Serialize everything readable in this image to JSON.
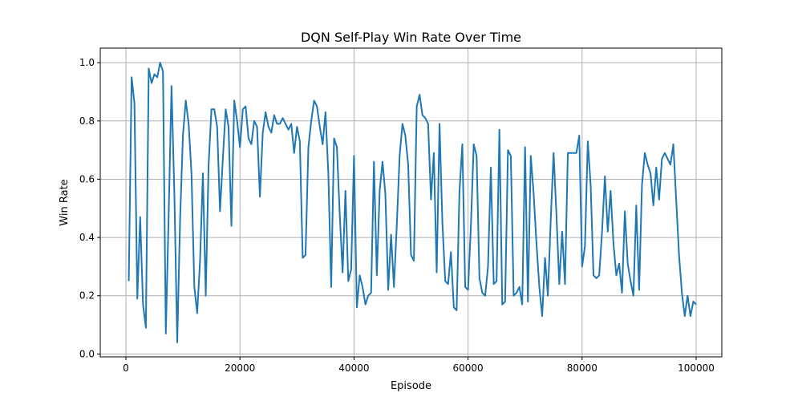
{
  "chart_data": {
    "type": "line",
    "title": "DQN Self-Play Win Rate Over Time",
    "xlabel": "Episode",
    "ylabel": "Win Rate",
    "xlim": [
      -4500,
      104500
    ],
    "ylim": [
      -0.01,
      1.05
    ],
    "xticks": [
      0,
      20000,
      40000,
      60000,
      80000,
      100000
    ],
    "xtick_labels": [
      "0",
      "20000",
      "40000",
      "60000",
      "80000",
      "100000"
    ],
    "yticks": [
      0.0,
      0.2,
      0.4,
      0.6,
      0.8,
      1.0
    ],
    "ytick_labels": [
      "0.0",
      "0.2",
      "0.4",
      "0.6",
      "0.8",
      "1.0"
    ],
    "grid": true,
    "line_color": "#1f77b4",
    "series": [
      {
        "x": [
          500,
          1000,
          1500,
          2000,
          2500,
          3000,
          3500,
          4000,
          4500,
          5000,
          5500,
          6000,
          6500,
          7000,
          7500,
          8000,
          8500,
          9000,
          9500,
          10000,
          10500,
          11000,
          11500,
          12000,
          12500,
          13000,
          13500,
          14000,
          14500,
          15000,
          15500,
          16000,
          16500,
          17000,
          17500,
          18000,
          18500,
          19000,
          19500,
          20000,
          20500,
          21000,
          21500,
          22000,
          22500,
          23000,
          23500,
          24000,
          24500,
          25000,
          25500,
          26000,
          26500,
          27000,
          27500,
          28000,
          28500,
          29000,
          29500,
          30000,
          30500,
          31000,
          31500,
          32000,
          32500,
          33000,
          33500,
          34000,
          34500,
          35000,
          35500,
          36000,
          36500,
          37000,
          37500,
          38000,
          38500,
          39000,
          39500,
          40000,
          40500,
          41000,
          41500,
          42000,
          42500,
          43000,
          43500,
          44000,
          44500,
          45000,
          45500,
          46000,
          46500,
          47000,
          47500,
          48000,
          48500,
          49000,
          49500,
          50000,
          50500,
          51000,
          51500,
          52000,
          52500,
          53000,
          53500,
          54000,
          54500,
          55000,
          55500,
          56000,
          56500,
          57000,
          57500,
          58000,
          58500,
          59000,
          59500,
          60000,
          60500,
          61000,
          61500,
          62000,
          62500,
          63000,
          63500,
          64000,
          64500,
          65000,
          65500,
          66000,
          66500,
          67000,
          67500,
          68000,
          68500,
          69000,
          69500,
          70000,
          70500,
          71000,
          71500,
          72000,
          72500,
          73000,
          73500,
          74000,
          74500,
          75000,
          75500,
          76000,
          76500,
          77000,
          77500,
          78000,
          78500,
          79000,
          79500,
          80000,
          80500,
          81000,
          81500,
          82000,
          82500,
          83000,
          83500,
          84000,
          84500,
          85000,
          85500,
          86000,
          86500,
          87000,
          87500,
          88000,
          88500,
          89000,
          89500,
          90000,
          90500,
          91000,
          91500,
          92000,
          92500,
          93000,
          93500,
          94000,
          94500,
          95000,
          95500,
          96000,
          96500,
          97000,
          97500,
          98000,
          98500,
          99000,
          99500,
          100000
        ],
        "values": [
          0.25,
          0.95,
          0.86,
          0.19,
          0.47,
          0.17,
          0.09,
          0.98,
          0.93,
          0.96,
          0.95,
          1.0,
          0.97,
          0.07,
          0.48,
          0.92,
          0.55,
          0.04,
          0.46,
          0.75,
          0.87,
          0.79,
          0.62,
          0.23,
          0.14,
          0.32,
          0.62,
          0.2,
          0.65,
          0.84,
          0.84,
          0.78,
          0.49,
          0.67,
          0.84,
          0.78,
          0.44,
          0.87,
          0.8,
          0.71,
          0.84,
          0.85,
          0.74,
          0.72,
          0.8,
          0.78,
          0.54,
          0.76,
          0.83,
          0.78,
          0.76,
          0.82,
          0.79,
          0.79,
          0.81,
          0.79,
          0.77,
          0.79,
          0.69,
          0.78,
          0.73,
          0.33,
          0.34,
          0.71,
          0.8,
          0.87,
          0.85,
          0.78,
          0.72,
          0.83,
          0.62,
          0.23,
          0.74,
          0.71,
          0.48,
          0.28,
          0.56,
          0.25,
          0.29,
          0.68,
          0.16,
          0.27,
          0.23,
          0.17,
          0.2,
          0.21,
          0.66,
          0.27,
          0.56,
          0.66,
          0.55,
          0.22,
          0.41,
          0.23,
          0.44,
          0.68,
          0.79,
          0.75,
          0.65,
          0.34,
          0.32,
          0.85,
          0.89,
          0.82,
          0.81,
          0.79,
          0.53,
          0.69,
          0.28,
          0.79,
          0.45,
          0.25,
          0.24,
          0.35,
          0.16,
          0.15,
          0.56,
          0.72,
          0.23,
          0.22,
          0.44,
          0.72,
          0.68,
          0.26,
          0.21,
          0.2,
          0.3,
          0.64,
          0.24,
          0.25,
          0.77,
          0.17,
          0.18,
          0.7,
          0.68,
          0.2,
          0.21,
          0.23,
          0.17,
          0.71,
          0.18,
          0.68,
          0.55,
          0.38,
          0.23,
          0.13,
          0.33,
          0.2,
          0.46,
          0.69,
          0.48,
          0.24,
          0.42,
          0.24,
          0.69,
          0.69,
          0.69,
          0.69,
          0.75,
          0.3,
          0.37,
          0.73,
          0.58,
          0.27,
          0.26,
          0.27,
          0.42,
          0.61,
          0.42,
          0.56,
          0.38,
          0.27,
          0.31,
          0.21,
          0.49,
          0.31,
          0.25,
          0.2,
          0.51,
          0.22,
          0.58,
          0.69,
          0.65,
          0.62,
          0.51,
          0.64,
          0.53,
          0.67,
          0.69,
          0.67,
          0.65,
          0.72,
          0.53,
          0.34,
          0.21,
          0.13,
          0.2,
          0.13,
          0.18,
          0.17
        ]
      }
    ]
  }
}
